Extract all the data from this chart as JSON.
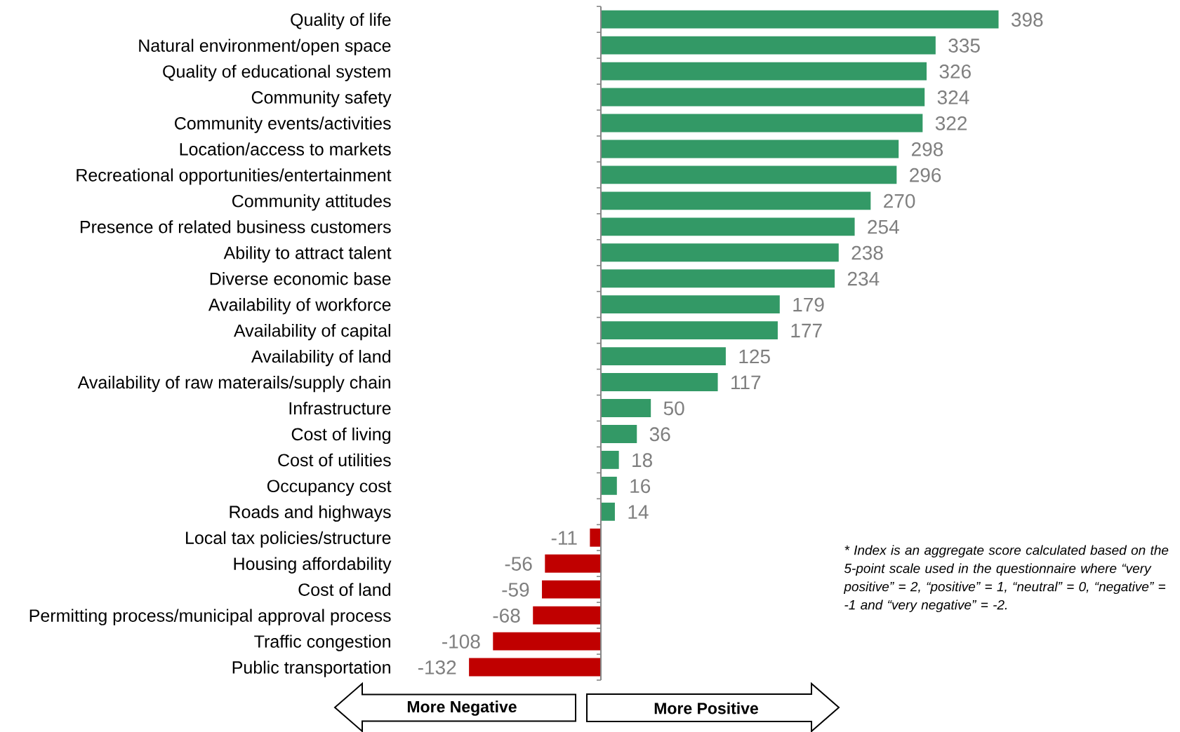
{
  "chart_data": {
    "type": "bar",
    "orientation": "horizontal",
    "data_labels": true,
    "tick_labels": "y",
    "categories": [
      "Quality of life",
      "Natural environment/open space",
      "Quality of educational system",
      "Community safety",
      "Community events/activities",
      "Location/access to markets",
      "Recreational opportunities/entertainment",
      "Community attitudes",
      "Presence of related business customers",
      "Ability to attract talent",
      "Diverse economic base",
      "Availability of workforce",
      "Availability of capital",
      "Availability of land",
      "Availability of raw materails/supply chain",
      "Infrastructure",
      "Cost of living",
      "Cost of utilities",
      "Occupancy cost",
      "Roads and highways",
      "Local tax policies/structure",
      "Housing affordability",
      "Cost of land",
      "Permitting process/municipal approval process",
      "Traffic congestion",
      "Public transportation"
    ],
    "values": [
      398,
      335,
      326,
      324,
      322,
      298,
      296,
      270,
      254,
      238,
      234,
      179,
      177,
      125,
      117,
      50,
      36,
      18,
      16,
      14,
      -11,
      -56,
      -59,
      -68,
      -108,
      -132
    ],
    "colors": [
      "#339966",
      "#339966",
      "#339966",
      "#339966",
      "#339966",
      "#339966",
      "#339966",
      "#339966",
      "#339966",
      "#339966",
      "#339966",
      "#339966",
      "#339966",
      "#339966",
      "#339966",
      "#339966",
      "#339966",
      "#339966",
      "#339966",
      "#339966",
      "#c00000",
      "#c00000",
      "#c00000",
      "#c00000",
      "#c00000",
      "#c00000"
    ],
    "annotations": [
      "* Index is an aggregate score calculated based on the 5-point scale used in the questionnaire where “very positive” = 2, “positive” = 1, “neutral” = 0, “negative” = -1 and “very negative” = -2.",
      "More Negative",
      "More Positive"
    ]
  }
}
